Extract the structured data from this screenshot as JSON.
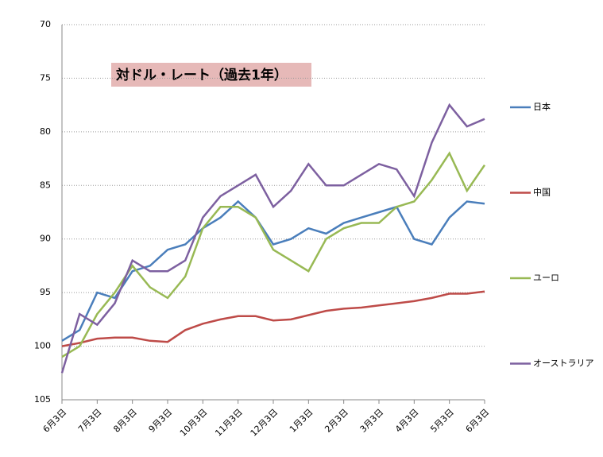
{
  "chart_data": {
    "type": "line",
    "title": "対ドル・レート（過去1年）",
    "categories": [
      "6月3日",
      null,
      "7月3日",
      null,
      "8月3日",
      null,
      "9月3日",
      null,
      "10月3日",
      null,
      "11月3日",
      null,
      "12月3日",
      null,
      "1月3日",
      null,
      "2月3日",
      null,
      "3月3日",
      null,
      "4月3日",
      null,
      "5月3日",
      null,
      "6月3日"
    ],
    "series": [
      {
        "name": "日本",
        "color": "#4a7ebb",
        "values": [
          99.5,
          98.5,
          95,
          95.5,
          93,
          92.5,
          91,
          90.5,
          89,
          88,
          86.5,
          88,
          90.5,
          90,
          89,
          89.5,
          88.5,
          88,
          87.5,
          87,
          90,
          90.5,
          88,
          86.5,
          86.7
        ]
      },
      {
        "name": "中国",
        "color": "#be4b48",
        "values": [
          100,
          99.7,
          99.3,
          99.2,
          99.2,
          99.5,
          99.6,
          98.5,
          97.9,
          97.5,
          97.2,
          97.2,
          97.6,
          97.5,
          97.1,
          96.7,
          96.5,
          96.4,
          96.2,
          96.0,
          95.8,
          95.5,
          95.1,
          95.1,
          94.9
        ]
      },
      {
        "name": "ユーロ",
        "color": "#98b954",
        "values": [
          101,
          100,
          97,
          95,
          92.5,
          94.5,
          95.5,
          93.5,
          89,
          87,
          87,
          88,
          91,
          92,
          93,
          90,
          89,
          88.5,
          88.5,
          87,
          86.5,
          84.5,
          82,
          85.5,
          83.1
        ]
      },
      {
        "name": "オーストラリア",
        "color": "#7d60a0",
        "values": [
          102.5,
          97,
          98,
          96,
          92,
          93,
          93,
          92,
          88,
          86,
          85,
          84,
          87,
          85.5,
          83,
          85,
          85,
          84,
          83,
          83.5,
          86,
          81,
          77.5,
          79.5,
          78.8
        ]
      }
    ],
    "ylim": [
      105,
      70
    ],
    "yticks": [
      70,
      75,
      80,
      85,
      90,
      95,
      100,
      105
    ],
    "grid": true
  }
}
